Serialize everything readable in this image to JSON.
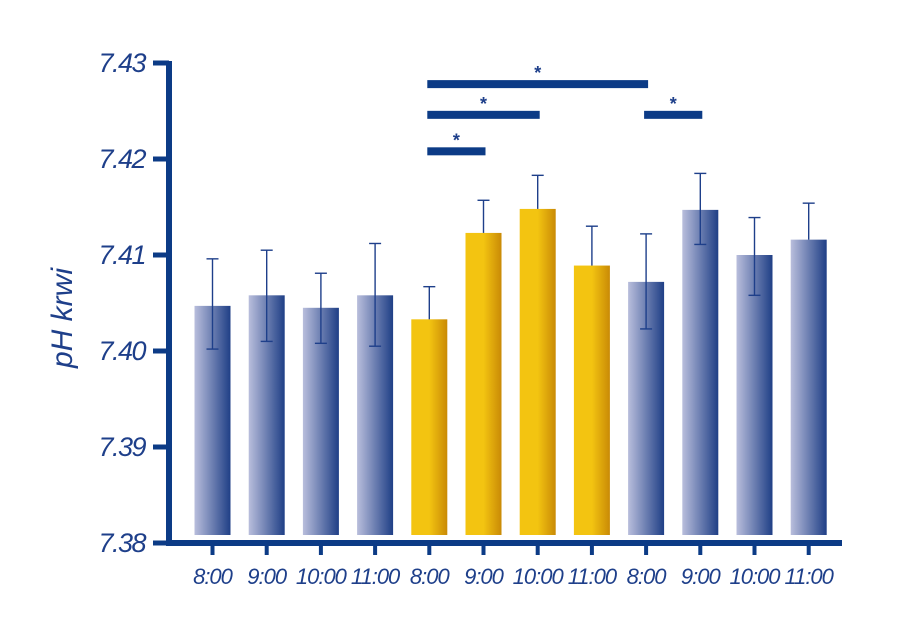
{
  "chart_data": {
    "type": "bar",
    "ylabel": "pH krwi",
    "xlabel": "",
    "ylim": [
      7.38,
      7.43
    ],
    "yticks": [
      "7.38",
      "7.39",
      "7.40",
      "7.41",
      "7.42",
      "7.43"
    ],
    "categories": [
      "8:00",
      "9:00",
      "10:00",
      "11:00",
      "8:00",
      "9:00",
      "10:00",
      "11:00",
      "8:00",
      "9:00",
      "10:00",
      "11:00"
    ],
    "values": [
      7.4047,
      7.4058,
      7.4045,
      7.4058,
      7.4033,
      7.4123,
      7.4148,
      7.4089,
      7.4072,
      7.4147,
      7.41,
      7.4116
    ],
    "err_upper": [
      7.4096,
      7.4105,
      7.4081,
      7.4112,
      7.4067,
      7.4157,
      7.4183,
      7.413,
      7.4122,
      7.4185,
      7.4139,
      7.4154
    ],
    "err_lower": [
      7.4002,
      7.401,
      7.4008,
      7.4005,
      null,
      null,
      null,
      null,
      7.4023,
      7.4111,
      7.4058,
      null
    ],
    "bar_groups": [
      "blue",
      "blue",
      "blue",
      "blue",
      "gold",
      "gold",
      "gold",
      "gold",
      "blue",
      "blue",
      "blue",
      "blue"
    ],
    "significance": [
      {
        "from": 4,
        "to": 8,
        "y": 7.4278,
        "label": "*"
      },
      {
        "from": 4,
        "to": 6,
        "y": 7.4246,
        "label": "*"
      },
      {
        "from": 4,
        "to": 5,
        "y": 7.4208,
        "label": "*"
      },
      {
        "from": 8,
        "to": 9,
        "y": 7.4246,
        "label": "*"
      }
    ],
    "colors": {
      "axis": "#0c3b86",
      "text": "#1e3f8a",
      "blue_light": "#b9bedc",
      "blue_dark": "#1f3f86",
      "gold_light": "#f3c411",
      "gold_dark": "#c98a06",
      "error_bar": "#1e3f8a"
    }
  }
}
